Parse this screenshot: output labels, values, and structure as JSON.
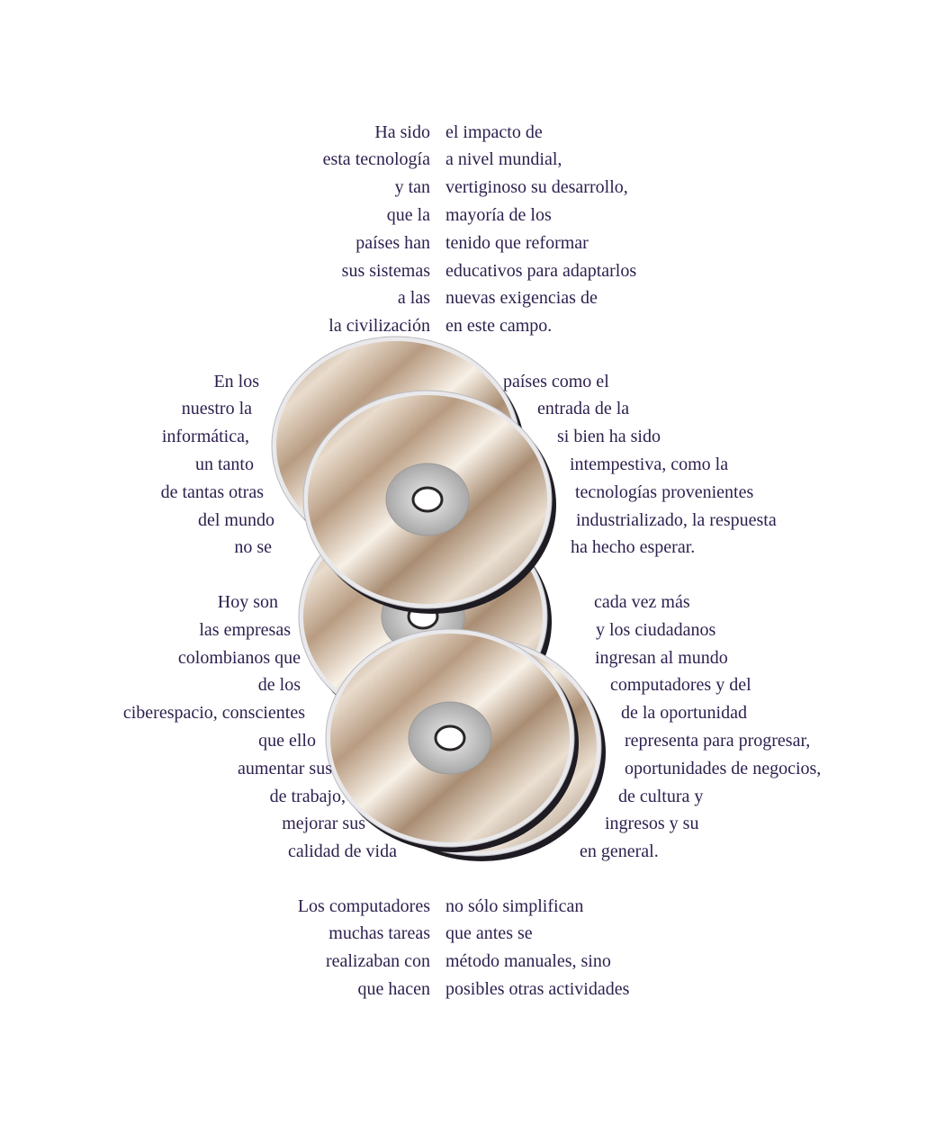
{
  "top": {
    "left": [
      "Ha sido",
      "esta tecnología",
      "y tan",
      "que la",
      "países han",
      "sus sistemas",
      "a las",
      "la civilización"
    ],
    "right": [
      "el impacto de",
      "a nivel mundial,",
      "vertiginoso su desarrollo,",
      "mayoría de los",
      "tenido que reformar",
      "educativos para adaptarlos",
      "nuevas exigencias de",
      "en este campo."
    ]
  },
  "mid1": {
    "left": [
      "En los",
      "nuestro la",
      "informática,",
      "un tanto",
      "de tantas otras",
      "del mundo",
      "no se"
    ],
    "right": [
      "países como el",
      "entrada de la",
      "si bien ha sido",
      "intempestiva, como la",
      "tecnologías provenientes",
      "industrializado, la respuesta",
      "ha hecho esperar."
    ]
  },
  "mid2": {
    "left": [
      "Hoy son",
      "las empresas",
      "colombianos que",
      "de los",
      "ciberespacio, conscientes",
      "que ello",
      "aumentar sus",
      "de trabajo,",
      "mejorar sus",
      "calidad de vida"
    ],
    "right": [
      "cada vez más",
      "y los ciudadanos",
      "ingresan al mundo",
      "computadores y del",
      "de la oportunidad",
      "representa para progresar,",
      "oportunidades de negocios,",
      "de cultura y",
      "ingresos y su",
      "en general."
    ]
  },
  "bottom": {
    "left": [
      "Los computadores",
      "muchas tareas",
      "realizaban con",
      "que hacen"
    ],
    "right": [
      "no sólo simplifican",
      "que antes se",
      "método manuales, sino",
      "posibles otras actividades"
    ]
  },
  "colors": {
    "text": "#2d1f4d",
    "disc_light": "#f4ece2",
    "disc_dark": "#b49a80",
    "hub": "#c4c4c4"
  },
  "illustration": {
    "icon": "cd-disc-icon",
    "disc_count": 5
  }
}
